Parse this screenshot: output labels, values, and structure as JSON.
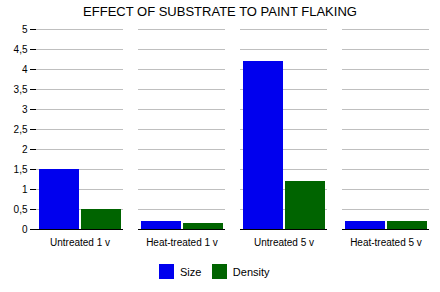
{
  "chart_data": {
    "type": "bar",
    "title": "EFFECT OF SUBSTRATE TO PAINT FLAKING",
    "categories": [
      "Untreated 1 v",
      "Heat-treated 1 v",
      "Untreated 5 v",
      "Heat-treated 5 v"
    ],
    "series": [
      {
        "name": "Size",
        "color": "#0000EE",
        "values": [
          1.5,
          0.2,
          4.2,
          0.2
        ]
      },
      {
        "name": "Density",
        "color": "#006400",
        "values": [
          0.5,
          0.15,
          1.2,
          0.2
        ]
      }
    ],
    "ylim": [
      0,
      5
    ],
    "yticks": [
      0,
      {
        "value": 0.5,
        "label": "0,5"
      },
      1,
      {
        "value": 1.5,
        "label": "1,5"
      },
      2,
      {
        "value": 2.5,
        "label": "2,5"
      },
      3,
      {
        "value": 3.5,
        "label": "3,5"
      },
      4,
      {
        "value": 4.5,
        "label": "4,5"
      },
      5
    ],
    "grid": true,
    "legend": "bottom"
  }
}
